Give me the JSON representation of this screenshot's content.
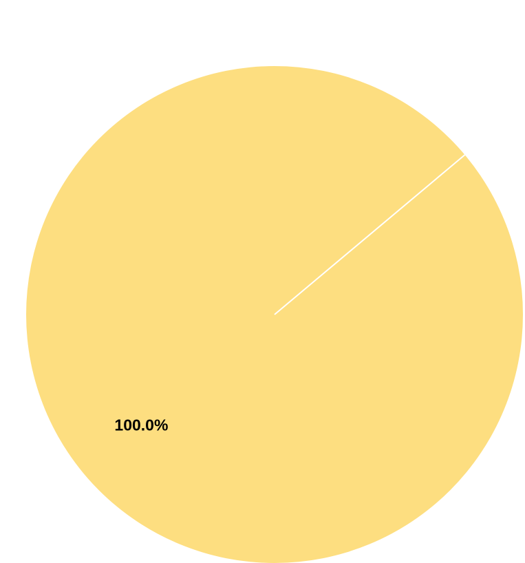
{
  "chart_data": {
    "type": "pie",
    "title": "",
    "slices": [
      {
        "value": 100.0,
        "label": "100.0%",
        "color": "#fdde80"
      }
    ],
    "separator_color": "#ffffff",
    "start_angle_deg": 40
  }
}
